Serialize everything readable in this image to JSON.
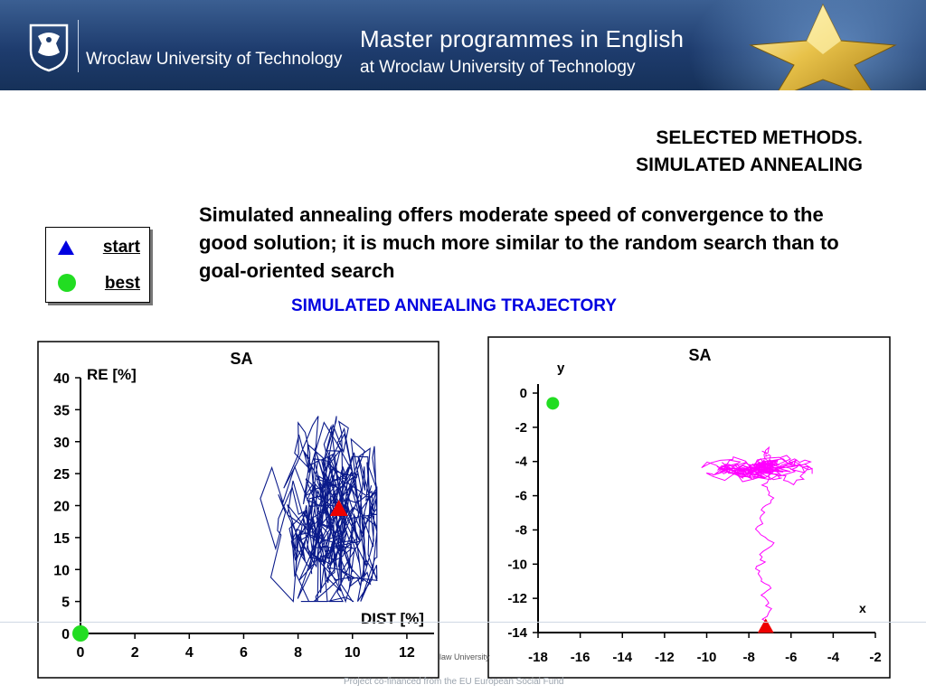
{
  "header": {
    "university": "Wroclaw University of Technology",
    "programme_line1": "Master programmes in English",
    "programme_line2": "at Wroclaw University of Technology"
  },
  "slide": {
    "title_line1": "SELECTED METHODS.",
    "title_line2": "SIMULATED ANNEALING",
    "body": "Simulated annealing offers moderate speed of convergence to the good solution; it is much more similar to the random search than to goal-oriented search",
    "trajectory_title": "SIMULATED ANNEALING TRAJECTORY"
  },
  "legend": {
    "start_label": "start",
    "best_label": "best",
    "start_color": "#0000e0",
    "best_color": "#22dd22"
  },
  "footer": {
    "cofinance": "Project co-financed from the EU European Social Fund",
    "fragment": "law University"
  },
  "chart_data": [
    {
      "type": "line",
      "title": "SA",
      "xlabel": "DIST [%]",
      "ylabel": "RE [%]",
      "xlim": [
        0,
        13
      ],
      "ylim": [
        0,
        40
      ],
      "xticks": [
        0,
        2,
        4,
        6,
        8,
        10,
        12
      ],
      "yticks": [
        0,
        5,
        10,
        15,
        20,
        25,
        30,
        35,
        40
      ],
      "series_color": "#0a1a8a",
      "trajectory_region": {
        "x": [
          6.6,
          10.9
        ],
        "y": [
          5,
          34
        ]
      },
      "start": {
        "x": 9.5,
        "y": 19.5,
        "color": "#ee0000"
      },
      "best": {
        "x": 0,
        "y": 0,
        "color": "#22dd22"
      },
      "grid": false
    },
    {
      "type": "line",
      "title": "SA",
      "xlabel": "x",
      "ylabel": "y",
      "xlim": [
        -18,
        -2
      ],
      "ylim": [
        -14,
        0
      ],
      "xticks": [
        -18,
        -16,
        -14,
        -12,
        -10,
        -8,
        -6,
        -4,
        -2
      ],
      "yticks": [
        0,
        -2,
        -4,
        -6,
        -8,
        -10,
        -12,
        -14
      ],
      "series_color": "#ff00ff",
      "start": {
        "x": -7.2,
        "y": -13.7,
        "color": "#ee0000"
      },
      "best": {
        "x": -17.3,
        "y": -0.6,
        "color": "#22dd22"
      },
      "grid": false
    }
  ]
}
